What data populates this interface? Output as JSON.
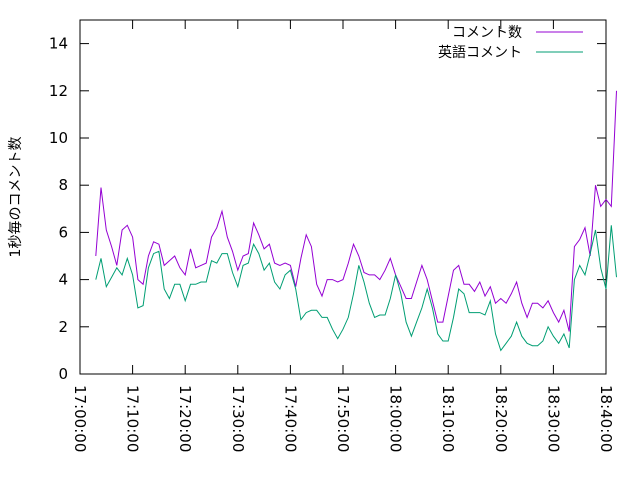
{
  "chart_data": {
    "type": "line",
    "title": "",
    "xlabel": "",
    "ylabel": "1秒毎のコメント数",
    "xlim": [
      "17:00:00",
      "18:40:00"
    ],
    "ylim": [
      0,
      15
    ],
    "xticks": [
      "17:00:00",
      "17:10:00",
      "17:20:00",
      "17:30:00",
      "17:40:00",
      "17:50:00",
      "18:00:00",
      "18:10:00",
      "18:20:00",
      "18:30:00",
      "18:40:00"
    ],
    "yticks": [
      "0",
      "2",
      "4",
      "6",
      "8",
      "10",
      "12",
      "14"
    ],
    "grid": false,
    "legend_position": "top-right",
    "sample_interval": "1 minute",
    "start_time": "17:03:00",
    "series": [
      {
        "name": "コメント数",
        "color": "#9400d3",
        "values": [
          5.0,
          7.9,
          6.1,
          5.4,
          4.6,
          6.1,
          6.3,
          5.8,
          4.0,
          3.8,
          5.0,
          5.6,
          5.5,
          4.6,
          4.8,
          5.0,
          4.5,
          4.2,
          5.3,
          4.5,
          4.6,
          4.7,
          5.8,
          6.2,
          6.9,
          5.8,
          5.2,
          4.4,
          5.0,
          5.1,
          6.4,
          5.9,
          5.3,
          5.5,
          4.7,
          4.6,
          4.7,
          4.6,
          3.7,
          4.9,
          5.9,
          5.4,
          3.8,
          3.3,
          4.0,
          4.0,
          3.9,
          4.0,
          4.7,
          5.5,
          5.0,
          4.3,
          4.2,
          4.2,
          4.0,
          4.4,
          4.9,
          4.2,
          3.7,
          3.2,
          3.2,
          3.9,
          4.6,
          4.0,
          3.1,
          2.2,
          2.2,
          3.3,
          4.4,
          4.6,
          3.8,
          3.8,
          3.5,
          3.9,
          3.3,
          3.7,
          3.0,
          3.2,
          3.0,
          3.4,
          3.9,
          3.0,
          2.4,
          3.0,
          3.0,
          2.8,
          3.1,
          2.6,
          2.2,
          2.7,
          1.8,
          5.4,
          5.7,
          6.2,
          5.0,
          8.0,
          7.1,
          7.4,
          7.1,
          12.0
        ]
      },
      {
        "name": "英語コメント",
        "color": "#009e73",
        "values": [
          4.0,
          4.9,
          3.7,
          4.1,
          4.5,
          4.2,
          4.9,
          4.2,
          2.8,
          2.9,
          4.5,
          5.1,
          5.2,
          3.6,
          3.2,
          3.8,
          3.8,
          3.1,
          3.8,
          3.8,
          3.9,
          3.9,
          4.8,
          4.7,
          5.1,
          5.1,
          4.3,
          3.7,
          4.6,
          4.7,
          5.5,
          5.1,
          4.4,
          4.7,
          3.9,
          3.6,
          4.2,
          4.4,
          3.6,
          2.3,
          2.6,
          2.7,
          2.7,
          2.4,
          2.4,
          1.9,
          1.5,
          1.9,
          2.4,
          3.4,
          4.6,
          3.9,
          3.0,
          2.4,
          2.5,
          2.5,
          3.2,
          4.2,
          3.4,
          2.2,
          1.6,
          2.2,
          2.8,
          3.6,
          2.8,
          1.7,
          1.4,
          1.4,
          2.4,
          3.6,
          3.4,
          2.6,
          2.6,
          2.6,
          2.5,
          3.1,
          1.7,
          1.0,
          1.3,
          1.6,
          2.2,
          1.6,
          1.3,
          1.2,
          1.2,
          1.4,
          2.0,
          1.6,
          1.3,
          1.7,
          1.1,
          4.0,
          4.6,
          4.2,
          5.1,
          6.1,
          4.5,
          3.6,
          6.3,
          4.1
        ]
      }
    ]
  }
}
